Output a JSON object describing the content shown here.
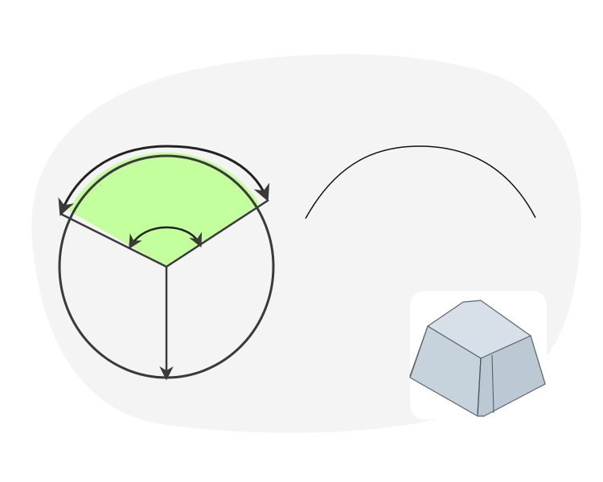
{
  "diagram": {
    "colors": {
      "background": "#ffffff",
      "blob": "#f4f4f4",
      "sector_fill": "#c4ff9e",
      "stroke": "#3a3a3a",
      "keycap_fill": "#cfd9e2",
      "keycap_top": "#d6dfe7",
      "keycap_stroke": "#5c6670"
    },
    "icons": [
      "circle-sector-icon",
      "arc-icon",
      "keycap-icon"
    ]
  }
}
